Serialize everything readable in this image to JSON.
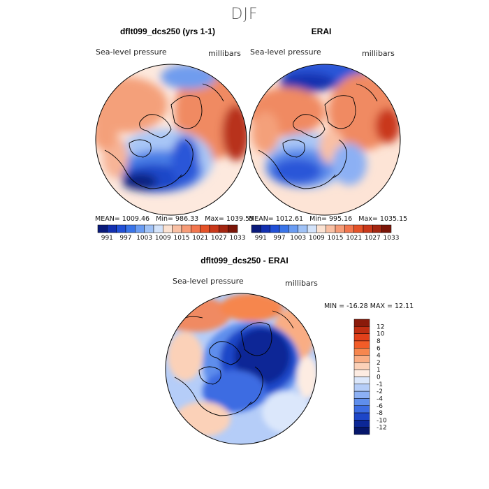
{
  "season": "DJF",
  "panels": [
    {
      "title": "dflt099_dcs250 (yrs 1-1)",
      "field_label": "Sea-level pressure",
      "units": "millibars",
      "stats": {
        "mean": "MEAN= 1009.46",
        "min": "Min= 986.33",
        "max": "Max= 1039.55"
      }
    },
    {
      "title": "ERAI",
      "field_label": "Sea-level pressure",
      "units": "millibars",
      "stats": {
        "mean": "MEAN= 1012.61",
        "min": "Min= 995.16",
        "max": "Max= 1035.15"
      }
    }
  ],
  "abs_colorbar": {
    "tick_labels": [
      "991",
      "997",
      "1003",
      "1009",
      "1015",
      "1021",
      "1027",
      "1033"
    ],
    "colors": [
      "#0a1a7a",
      "#1330b0",
      "#2250d6",
      "#3a74e8",
      "#6a9cf2",
      "#a0c2f6",
      "#d3e3fa",
      "#fbe2d2",
      "#f9c0a4",
      "#f69c78",
      "#f2764e",
      "#e45228",
      "#c9381a",
      "#a32611",
      "#7a1508"
    ]
  },
  "diff_panel": {
    "title": "dflt099_dcs250 - ERAI",
    "field_label": "Sea-level pressure",
    "units": "millibars",
    "min_max_text": "MIN = -16.28 MAX =  12.11",
    "colorbar": {
      "labels": [
        "12",
        "10",
        "8",
        "6",
        "4",
        "2",
        "1",
        "0",
        "-1",
        "-2",
        "-4",
        "-6",
        "-8",
        "-10",
        "-12"
      ],
      "colors": [
        "#8a1a0a",
        "#c02e12",
        "#e2401a",
        "#f25c28",
        "#f6864e",
        "#f9ad84",
        "#fbd1b8",
        "#fdece2",
        "#dbe7fb",
        "#b5cdf8",
        "#8cb0f4",
        "#5f8eec",
        "#3c6ce2",
        "#1d46c8",
        "#0c2796",
        "#06166a"
      ]
    }
  }
}
